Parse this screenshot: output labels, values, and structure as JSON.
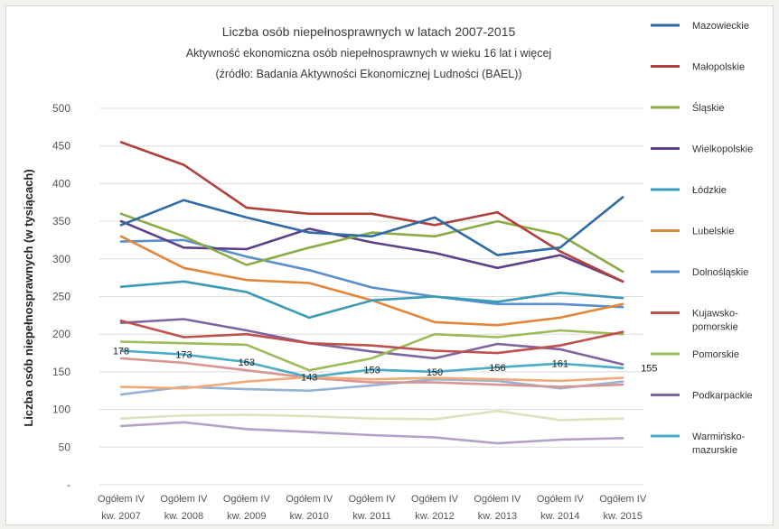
{
  "chart_data": {
    "type": "line",
    "title": "Liczba osób niepełnosprawnych w latach 2007-2015",
    "subtitle": "Aktywność ekonomiczna osób niepełnosprawnych w wieku  16 lat i więcej",
    "source": "(źródło: Badania Aktywności Ekonomicznej Ludności (BAEL))",
    "ylabel": "Liczba osób niepełnosprawnych (w tysiącach)",
    "xlabel": "",
    "ylim": [
      0,
      500
    ],
    "yticks": [
      "-",
      "50",
      "100",
      "150",
      "200",
      "250",
      "300",
      "350",
      "400",
      "450",
      "500"
    ],
    "categories": [
      [
        "Ogółem IV",
        "kw. 2007"
      ],
      [
        "Ogółem IV",
        "kw. 2008"
      ],
      [
        "Ogółem IV",
        "kw. 2009"
      ],
      [
        "Ogółem IV",
        "kw. 2010"
      ],
      [
        "Ogółem IV",
        "kw. 2011"
      ],
      [
        "Ogółem IV",
        "kw. 2012"
      ],
      [
        "Ogółem IV",
        "kw. 2013"
      ],
      [
        "Ogółem IV",
        "kw. 2014"
      ],
      [
        "Ogółem IV",
        "kw. 2015"
      ]
    ],
    "grid": true,
    "legend_position": "right",
    "series": [
      {
        "name": "Mazowieckie",
        "color": "#2f6aa8",
        "values": [
          345,
          378,
          355,
          335,
          330,
          355,
          305,
          315,
          382
        ]
      },
      {
        "name": "Małopolskie",
        "color": "#b0403c",
        "values": [
          455,
          425,
          368,
          360,
          360,
          345,
          362,
          310,
          270
        ]
      },
      {
        "name": "Śląskie",
        "color": "#8aab45",
        "values": [
          360,
          330,
          292,
          315,
          335,
          330,
          350,
          332,
          283
        ]
      },
      {
        "name": "Wielkopolskie",
        "color": "#5c4189",
        "values": [
          350,
          315,
          313,
          340,
          322,
          308,
          288,
          305,
          270
        ]
      },
      {
        "name": "Łódzkie",
        "color": "#3b9ab6",
        "values": [
          263,
          270,
          256,
          222,
          245,
          250,
          243,
          255,
          248
        ]
      },
      {
        "name": "Lubelskie",
        "color": "#e2873a",
        "values": [
          330,
          288,
          272,
          268,
          245,
          216,
          212,
          222,
          240
        ]
      },
      {
        "name": "Dolnośląskie",
        "color": "#5b8ecc",
        "values": [
          323,
          325,
          303,
          285,
          262,
          250,
          240,
          240,
          236
        ]
      },
      {
        "name": "Kujawsko-pomorskie",
        "color": "#c0504d",
        "values": [
          218,
          196,
          200,
          188,
          185,
          178,
          175,
          185,
          203
        ]
      },
      {
        "name": "Pomorskie",
        "color": "#9bbb59",
        "values": [
          190,
          188,
          186,
          152,
          168,
          200,
          196,
          205,
          200
        ]
      },
      {
        "name": "Podkarpackie",
        "color": "#8064a2",
        "values": [
          215,
          220,
          205,
          188,
          177,
          168,
          187,
          180,
          160
        ]
      },
      {
        "name": "Warmińsko-mazurskie",
        "color": "#4bacc6",
        "values": [
          178,
          173,
          163,
          143,
          153,
          150,
          156,
          161,
          155
        ]
      },
      {
        "name": "",
        "color": "#f0a97a",
        "values": [
          130,
          128,
          137,
          143,
          140,
          142,
          140,
          138,
          142
        ]
      },
      {
        "name": "",
        "color": "#d99594",
        "values": [
          168,
          162,
          152,
          142,
          136,
          136,
          133,
          130,
          133
        ]
      },
      {
        "name": "",
        "color": "#95b3d7",
        "values": [
          120,
          130,
          127,
          125,
          132,
          140,
          138,
          128,
          137
        ]
      },
      {
        "name": "",
        "color": "#d7e4bd",
        "values": [
          88,
          92,
          93,
          91,
          88,
          87,
          98,
          86,
          88
        ]
      },
      {
        "name": "",
        "color": "#b3a2c7",
        "values": [
          78,
          83,
          74,
          70,
          66,
          63,
          55,
          60,
          62
        ]
      }
    ],
    "annotations": [
      "178",
      "173",
      "163",
      "143",
      "153",
      "150",
      "156",
      "161",
      "155"
    ]
  }
}
